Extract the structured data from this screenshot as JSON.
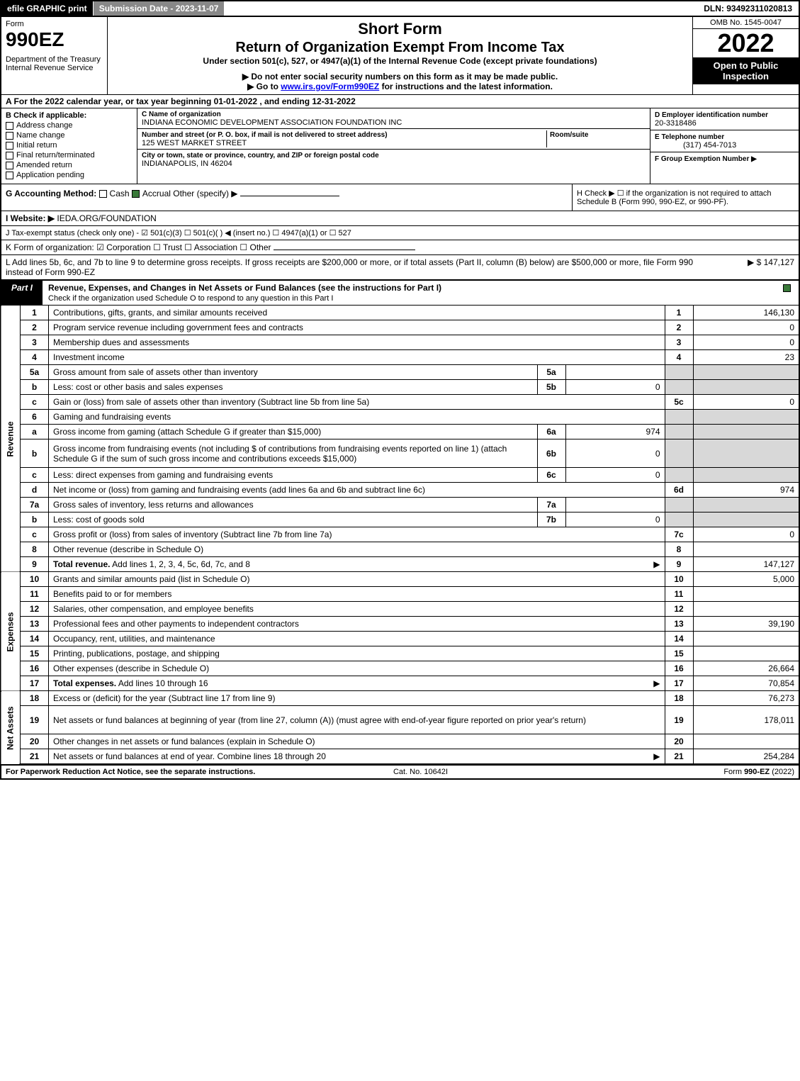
{
  "topbar": {
    "efile": "efile GRAPHIC print",
    "subdate": "Submission Date - 2023-11-07",
    "dln": "DLN: 93492311020813"
  },
  "header": {
    "form_label": "Form",
    "form_num": "990EZ",
    "dept": "Department of the Treasury\nInternal Revenue Service",
    "short_form": "Short Form",
    "title": "Return of Organization Exempt From Income Tax",
    "subtitle": "Under section 501(c), 527, or 4947(a)(1) of the Internal Revenue Code (except private foundations)",
    "warn1": "▶ Do not enter social security numbers on this form as it may be made public.",
    "warn2_pre": "▶ Go to ",
    "warn2_link": "www.irs.gov/Form990EZ",
    "warn2_post": " for instructions and the latest information.",
    "omb": "OMB No. 1545-0047",
    "year": "2022",
    "open": "Open to Public Inspection"
  },
  "a": "A  For the 2022 calendar year, or tax year beginning 01-01-2022 , and ending 12-31-2022",
  "b": {
    "label": "B  Check if applicable:",
    "items": [
      "Address change",
      "Name change",
      "Initial return",
      "Final return/terminated",
      "Amended return",
      "Application pending"
    ]
  },
  "c": {
    "name_label": "C Name of organization",
    "name": "INDIANA ECONOMIC DEVELOPMENT ASSOCIATION FOUNDATION INC",
    "addr_label": "Number and street (or P. O. box, if mail is not delivered to street address)",
    "room_label": "Room/suite",
    "addr": "125 WEST MARKET STREET",
    "city_label": "City or town, state or province, country, and ZIP or foreign postal code",
    "city": "INDIANAPOLIS, IN  46204"
  },
  "d": {
    "ein_label": "D Employer identification number",
    "ein": "20-3318486",
    "tel_label": "E Telephone number",
    "tel": "(317) 454-7013",
    "grp_label": "F Group Exemption Number   ▶"
  },
  "g": {
    "label": "G Accounting Method:",
    "cash": "Cash",
    "accrual": "Accrual",
    "other": "Other (specify) ▶"
  },
  "h": "H  Check ▶   ☐  if the organization is not required to attach Schedule B (Form 990, 990-EZ, or 990-PF).",
  "i": {
    "label": "I Website: ▶",
    "val": "IEDA.ORG/FOUNDATION"
  },
  "j": "J Tax-exempt status (check only one) -  ☑ 501(c)(3)  ☐ 501(c)(  )  ◀ (insert no.)  ☐ 4947(a)(1) or  ☐ 527",
  "k": "K Form of organization:   ☑ Corporation   ☐ Trust   ☐ Association   ☐ Other",
  "l": {
    "text": "L Add lines 5b, 6c, and 7b to line 9 to determine gross receipts. If gross receipts are $200,000 or more, or if total assets (Part II, column (B) below) are $500,000 or more, file Form 990 instead of Form 990-EZ",
    "val": "▶ $ 147,127"
  },
  "part1": {
    "tab": "Part I",
    "title": "Revenue, Expenses, and Changes in Net Assets or Fund Balances (see the instructions for Part I)",
    "sub": "Check if the organization used Schedule O to respond to any question in this Part I"
  },
  "sections": {
    "revenue": "Revenue",
    "expenses": "Expenses",
    "netassets": "Net Assets"
  },
  "rows": [
    {
      "n": "1",
      "d": "Contributions, gifts, grants, and similar amounts received",
      "rn": "1",
      "rv": "146,130"
    },
    {
      "n": "2",
      "d": "Program service revenue including government fees and contracts",
      "rn": "2",
      "rv": "0"
    },
    {
      "n": "3",
      "d": "Membership dues and assessments",
      "rn": "3",
      "rv": "0"
    },
    {
      "n": "4",
      "d": "Investment income",
      "rn": "4",
      "rv": "23"
    },
    {
      "n": "5a",
      "d": "Gross amount from sale of assets other than inventory",
      "mn": "5a",
      "mv": "",
      "shade": true
    },
    {
      "n": "b",
      "d": "Less: cost or other basis and sales expenses",
      "mn": "5b",
      "mv": "0",
      "shade": true
    },
    {
      "n": "c",
      "d": "Gain or (loss) from sale of assets other than inventory (Subtract line 5b from line 5a)",
      "rn": "5c",
      "rv": "0"
    },
    {
      "n": "6",
      "d": "Gaming and fundraising events",
      "shade": true,
      "noline": true
    },
    {
      "n": "a",
      "d": "Gross income from gaming (attach Schedule G if greater than $15,000)",
      "mn": "6a",
      "mv": "974",
      "shade": true
    },
    {
      "n": "b",
      "d": "Gross income from fundraising events (not including $                      of contributions from fundraising events reported on line 1) (attach Schedule G if the sum of such gross income and contributions exceeds $15,000)",
      "mn": "6b",
      "mv": "0",
      "shade": true,
      "tall": true
    },
    {
      "n": "c",
      "d": "Less: direct expenses from gaming and fundraising events",
      "mn": "6c",
      "mv": "0",
      "shade": true
    },
    {
      "n": "d",
      "d": "Net income or (loss) from gaming and fundraising events (add lines 6a and 6b and subtract line 6c)",
      "rn": "6d",
      "rv": "974"
    },
    {
      "n": "7a",
      "d": "Gross sales of inventory, less returns and allowances",
      "mn": "7a",
      "mv": "",
      "shade": true
    },
    {
      "n": "b",
      "d": "Less: cost of goods sold",
      "mn": "7b",
      "mv": "0",
      "shade": true
    },
    {
      "n": "c",
      "d": "Gross profit or (loss) from sales of inventory (Subtract line 7b from line 7a)",
      "rn": "7c",
      "rv": "0"
    },
    {
      "n": "8",
      "d": "Other revenue (describe in Schedule O)",
      "rn": "8",
      "rv": ""
    },
    {
      "n": "9",
      "d": "Total revenue. Add lines 1, 2, 3, 4, 5c, 6d, 7c, and 8",
      "rn": "9",
      "rv": "147,127",
      "bold": true,
      "arrow": true
    }
  ],
  "exp_rows": [
    {
      "n": "10",
      "d": "Grants and similar amounts paid (list in Schedule O)",
      "rn": "10",
      "rv": "5,000"
    },
    {
      "n": "11",
      "d": "Benefits paid to or for members",
      "rn": "11",
      "rv": ""
    },
    {
      "n": "12",
      "d": "Salaries, other compensation, and employee benefits",
      "rn": "12",
      "rv": ""
    },
    {
      "n": "13",
      "d": "Professional fees and other payments to independent contractors",
      "rn": "13",
      "rv": "39,190"
    },
    {
      "n": "14",
      "d": "Occupancy, rent, utilities, and maintenance",
      "rn": "14",
      "rv": ""
    },
    {
      "n": "15",
      "d": "Printing, publications, postage, and shipping",
      "rn": "15",
      "rv": ""
    },
    {
      "n": "16",
      "d": "Other expenses (describe in Schedule O)",
      "rn": "16",
      "rv": "26,664"
    },
    {
      "n": "17",
      "d": "Total expenses. Add lines 10 through 16",
      "rn": "17",
      "rv": "70,854",
      "bold": true,
      "arrow": true
    }
  ],
  "na_rows": [
    {
      "n": "18",
      "d": "Excess or (deficit) for the year (Subtract line 17 from line 9)",
      "rn": "18",
      "rv": "76,273"
    },
    {
      "n": "19",
      "d": "Net assets or fund balances at beginning of year (from line 27, column (A)) (must agree with end-of-year figure reported on prior year's return)",
      "rn": "19",
      "rv": "178,011",
      "tall": true
    },
    {
      "n": "20",
      "d": "Other changes in net assets or fund balances (explain in Schedule O)",
      "rn": "20",
      "rv": ""
    },
    {
      "n": "21",
      "d": "Net assets or fund balances at end of year. Combine lines 18 through 20",
      "rn": "21",
      "rv": "254,284",
      "arrow": true
    }
  ],
  "footer": {
    "left": "For Paperwork Reduction Act Notice, see the separate instructions.",
    "mid": "Cat. No. 10642I",
    "right": "Form 990-EZ (2022)"
  },
  "colors": {
    "border": "#000000",
    "shade": "#d8d8d8",
    "topbar_grey": "#888888",
    "check_green": "#3a7a3a",
    "link": "#0000ee"
  }
}
